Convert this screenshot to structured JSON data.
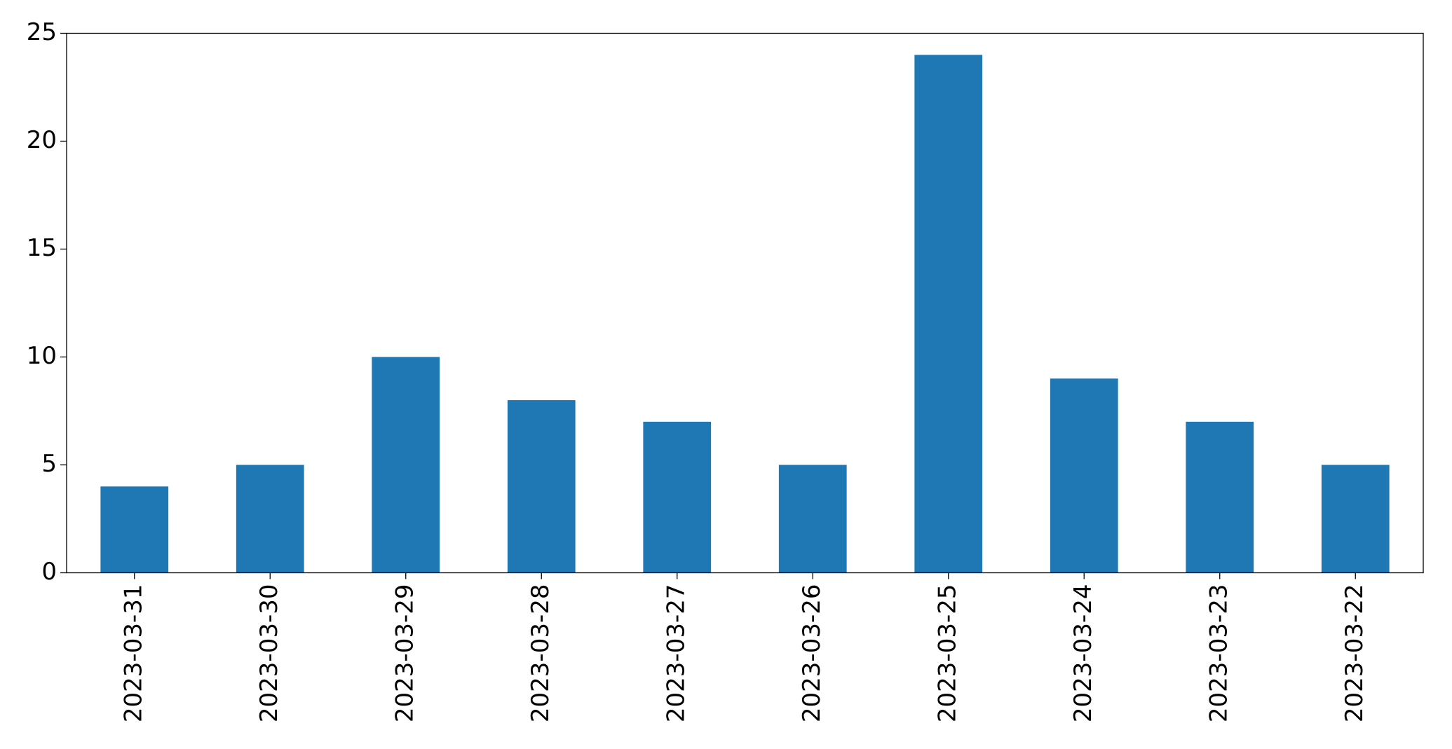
{
  "chart_data": {
    "type": "bar",
    "categories": [
      "2023-03-31",
      "2023-03-30",
      "2023-03-29",
      "2023-03-28",
      "2023-03-27",
      "2023-03-26",
      "2023-03-25",
      "2023-03-24",
      "2023-03-23",
      "2023-03-22"
    ],
    "values": [
      4,
      5,
      10,
      8,
      7,
      5,
      24,
      9,
      7,
      5
    ],
    "color": "#1f77b4",
    "ylim": [
      0,
      25
    ],
    "yticks": [
      0,
      5,
      10,
      15,
      20,
      25
    ],
    "grid": false
  }
}
